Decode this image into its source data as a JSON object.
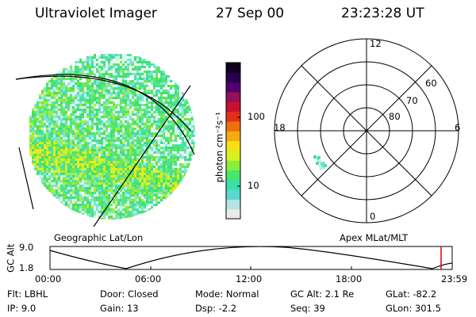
{
  "header": {
    "instrument": "Ultraviolet Imager",
    "date": "27 Sep 00",
    "time": "23:23:28 UT"
  },
  "image_panel": {
    "label": "Geographic Lat/Lon"
  },
  "colorbar": {
    "label": "photon cm⁻²s⁻¹",
    "tick_100": "100",
    "tick_10": "10",
    "colors": [
      "#e8ece8",
      "#b6e4e4",
      "#5ad8d0",
      "#3ae0a8",
      "#45e66a",
      "#88ee3a",
      "#d8f21e",
      "#f7e016",
      "#f3ac12",
      "#ee7010",
      "#e4301a",
      "#c8102e",
      "#941058",
      "#520070",
      "#2a0050",
      "#100020"
    ]
  },
  "polar_plot": {
    "label": "Apex MLat/MLT",
    "mlt_top": "12",
    "mlt_bottom": "0",
    "mlt_left": "18",
    "mlt_right": "6",
    "lat_60": "60",
    "lat_70": "70",
    "lat_80": "80"
  },
  "altitude_plot": {
    "ylabel": "GC Alt",
    "ytick_top": "9.0",
    "ytick_bottom": "1.8",
    "xticks": [
      "00:00",
      "06:00",
      "12:00",
      "18:00",
      "23:59"
    ]
  },
  "footer": {
    "flt": "Flt: LBHL",
    "ip": "IP:  9.0",
    "door": "Door: Closed",
    "gain": "Gain: 13",
    "mode": "Mode: Normal",
    "dsp": "Dsp:   -2.2",
    "gc_alt": "GC Alt: 2.1 Re",
    "seq": "Seq: 39",
    "glat": "GLat: -82.2",
    "glon": "GLon: 301.5"
  }
}
